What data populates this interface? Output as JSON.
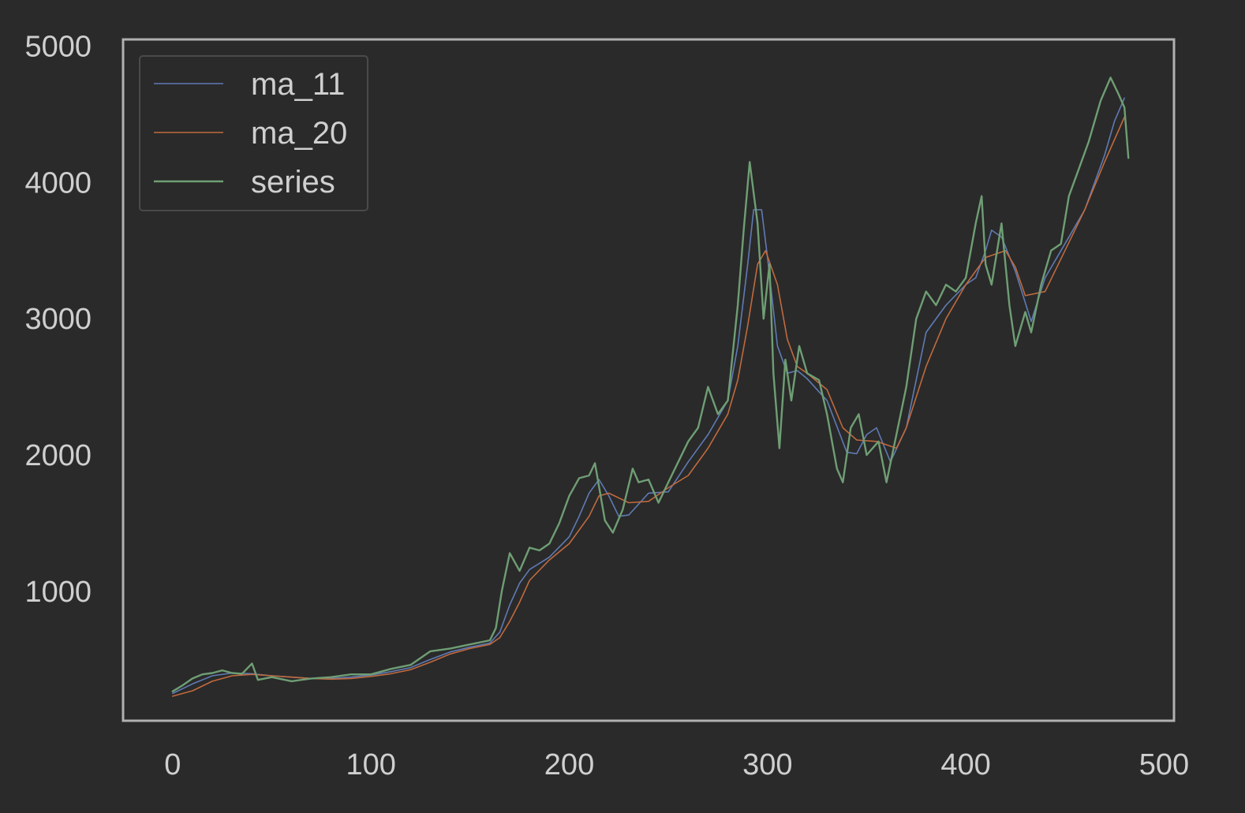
{
  "chart_data": {
    "type": "line",
    "title": "",
    "xlabel": "",
    "ylabel": "",
    "xlim": [
      -25,
      505
    ],
    "ylim": [
      50,
      5050
    ],
    "xticks": [
      0,
      100,
      200,
      300,
      400,
      500
    ],
    "yticks": [
      1000,
      2000,
      3000,
      4000,
      5000
    ],
    "xtick_labels": [
      "0",
      "100",
      "200",
      "300",
      "400",
      "500"
    ],
    "ytick_labels": [
      "1000",
      "2000",
      "3000",
      "4000",
      "5000"
    ],
    "grid": false,
    "legend": "top-left",
    "background": "#2a2a2a",
    "axes_color": "#b0b0b0",
    "text_color": "#cfcfcf",
    "series": [
      {
        "name": "ma_11",
        "color": "#5f7bb5",
        "points": [
          [
            0,
            250
          ],
          [
            10,
            320
          ],
          [
            20,
            380
          ],
          [
            30,
            400
          ],
          [
            40,
            395
          ],
          [
            50,
            380
          ],
          [
            60,
            370
          ],
          [
            70,
            360
          ],
          [
            80,
            360
          ],
          [
            90,
            370
          ],
          [
            100,
            385
          ],
          [
            110,
            410
          ],
          [
            120,
            440
          ],
          [
            130,
            500
          ],
          [
            140,
            555
          ],
          [
            150,
            590
          ],
          [
            160,
            620
          ],
          [
            165,
            700
          ],
          [
            170,
            900
          ],
          [
            175,
            1060
          ],
          [
            180,
            1160
          ],
          [
            190,
            1250
          ],
          [
            200,
            1400
          ],
          [
            205,
            1550
          ],
          [
            210,
            1720
          ],
          [
            215,
            1820
          ],
          [
            220,
            1700
          ],
          [
            225,
            1550
          ],
          [
            230,
            1560
          ],
          [
            240,
            1720
          ],
          [
            250,
            1730
          ],
          [
            260,
            1950
          ],
          [
            270,
            2150
          ],
          [
            280,
            2400
          ],
          [
            285,
            2800
          ],
          [
            290,
            3400
          ],
          [
            293,
            3800
          ],
          [
            297,
            3800
          ],
          [
            300,
            3450
          ],
          [
            305,
            2800
          ],
          [
            310,
            2600
          ],
          [
            315,
            2620
          ],
          [
            320,
            2560
          ],
          [
            330,
            2400
          ],
          [
            340,
            2020
          ],
          [
            345,
            2010
          ],
          [
            350,
            2150
          ],
          [
            355,
            2200
          ],
          [
            362,
            1950
          ],
          [
            370,
            2200
          ],
          [
            380,
            2900
          ],
          [
            390,
            3100
          ],
          [
            400,
            3250
          ],
          [
            405,
            3300
          ],
          [
            410,
            3500
          ],
          [
            413,
            3650
          ],
          [
            418,
            3600
          ],
          [
            425,
            3350
          ],
          [
            433,
            2980
          ],
          [
            440,
            3300
          ],
          [
            450,
            3550
          ],
          [
            460,
            3800
          ],
          [
            470,
            4200
          ],
          [
            475,
            4450
          ],
          [
            480,
            4620
          ]
        ]
      },
      {
        "name": "ma_20",
        "color": "#c06a3e",
        "points": [
          [
            0,
            230
          ],
          [
            10,
            270
          ],
          [
            20,
            340
          ],
          [
            30,
            380
          ],
          [
            40,
            390
          ],
          [
            50,
            380
          ],
          [
            60,
            370
          ],
          [
            70,
            360
          ],
          [
            80,
            355
          ],
          [
            90,
            360
          ],
          [
            100,
            375
          ],
          [
            110,
            395
          ],
          [
            120,
            425
          ],
          [
            130,
            480
          ],
          [
            140,
            540
          ],
          [
            150,
            580
          ],
          [
            160,
            610
          ],
          [
            165,
            660
          ],
          [
            170,
            780
          ],
          [
            175,
            920
          ],
          [
            180,
            1080
          ],
          [
            190,
            1230
          ],
          [
            200,
            1350
          ],
          [
            210,
            1550
          ],
          [
            215,
            1700
          ],
          [
            220,
            1720
          ],
          [
            230,
            1650
          ],
          [
            240,
            1660
          ],
          [
            250,
            1760
          ],
          [
            260,
            1850
          ],
          [
            270,
            2050
          ],
          [
            280,
            2300
          ],
          [
            285,
            2550
          ],
          [
            290,
            2950
          ],
          [
            295,
            3400
          ],
          [
            299,
            3500
          ],
          [
            305,
            3250
          ],
          [
            310,
            2850
          ],
          [
            315,
            2650
          ],
          [
            320,
            2600
          ],
          [
            330,
            2480
          ],
          [
            338,
            2200
          ],
          [
            345,
            2110
          ],
          [
            355,
            2100
          ],
          [
            365,
            2050
          ],
          [
            370,
            2200
          ],
          [
            380,
            2650
          ],
          [
            390,
            3000
          ],
          [
            400,
            3250
          ],
          [
            410,
            3450
          ],
          [
            420,
            3500
          ],
          [
            425,
            3380
          ],
          [
            430,
            3170
          ],
          [
            440,
            3200
          ],
          [
            450,
            3500
          ],
          [
            460,
            3800
          ],
          [
            470,
            4150
          ],
          [
            480,
            4480
          ]
        ]
      },
      {
        "name": "series",
        "color": "#6f9e74",
        "points": [
          [
            0,
            265
          ],
          [
            5,
            310
          ],
          [
            10,
            360
          ],
          [
            15,
            390
          ],
          [
            20,
            400
          ],
          [
            25,
            420
          ],
          [
            30,
            400
          ],
          [
            35,
            395
          ],
          [
            40,
            470
          ],
          [
            43,
            350
          ],
          [
            50,
            370
          ],
          [
            60,
            340
          ],
          [
            70,
            360
          ],
          [
            80,
            370
          ],
          [
            90,
            390
          ],
          [
            100,
            390
          ],
          [
            110,
            430
          ],
          [
            120,
            460
          ],
          [
            125,
            510
          ],
          [
            130,
            560
          ],
          [
            140,
            580
          ],
          [
            150,
            610
          ],
          [
            160,
            640
          ],
          [
            163,
            730
          ],
          [
            166,
            1000
          ],
          [
            170,
            1280
          ],
          [
            175,
            1150
          ],
          [
            180,
            1320
          ],
          [
            185,
            1300
          ],
          [
            190,
            1350
          ],
          [
            195,
            1500
          ],
          [
            200,
            1700
          ],
          [
            205,
            1830
          ],
          [
            210,
            1850
          ],
          [
            213,
            1940
          ],
          [
            218,
            1520
          ],
          [
            222,
            1430
          ],
          [
            227,
            1600
          ],
          [
            232,
            1900
          ],
          [
            235,
            1800
          ],
          [
            240,
            1820
          ],
          [
            245,
            1650
          ],
          [
            250,
            1800
          ],
          [
            255,
            1950
          ],
          [
            260,
            2100
          ],
          [
            265,
            2200
          ],
          [
            270,
            2500
          ],
          [
            275,
            2300
          ],
          [
            280,
            2400
          ],
          [
            285,
            3100
          ],
          [
            288,
            3650
          ],
          [
            291,
            4150
          ],
          [
            295,
            3700
          ],
          [
            298,
            3000
          ],
          [
            301,
            3400
          ],
          [
            303,
            2600
          ],
          [
            306,
            2050
          ],
          [
            309,
            2700
          ],
          [
            312,
            2400
          ],
          [
            316,
            2800
          ],
          [
            320,
            2600
          ],
          [
            326,
            2550
          ],
          [
            330,
            2300
          ],
          [
            335,
            1900
          ],
          [
            338,
            1800
          ],
          [
            342,
            2200
          ],
          [
            346,
            2300
          ],
          [
            350,
            2000
          ],
          [
            356,
            2100
          ],
          [
            360,
            1800
          ],
          [
            365,
            2150
          ],
          [
            370,
            2500
          ],
          [
            375,
            3000
          ],
          [
            380,
            3200
          ],
          [
            385,
            3100
          ],
          [
            390,
            3250
          ],
          [
            395,
            3200
          ],
          [
            400,
            3300
          ],
          [
            405,
            3700
          ],
          [
            408,
            3900
          ],
          [
            410,
            3400
          ],
          [
            413,
            3250
          ],
          [
            418,
            3700
          ],
          [
            422,
            3100
          ],
          [
            425,
            2800
          ],
          [
            430,
            3050
          ],
          [
            433,
            2900
          ],
          [
            438,
            3250
          ],
          [
            443,
            3500
          ],
          [
            448,
            3550
          ],
          [
            452,
            3900
          ],
          [
            457,
            4100
          ],
          [
            462,
            4300
          ],
          [
            468,
            4600
          ],
          [
            473,
            4770
          ],
          [
            477,
            4650
          ],
          [
            480,
            4550
          ],
          [
            482,
            4180
          ]
        ]
      }
    ]
  }
}
